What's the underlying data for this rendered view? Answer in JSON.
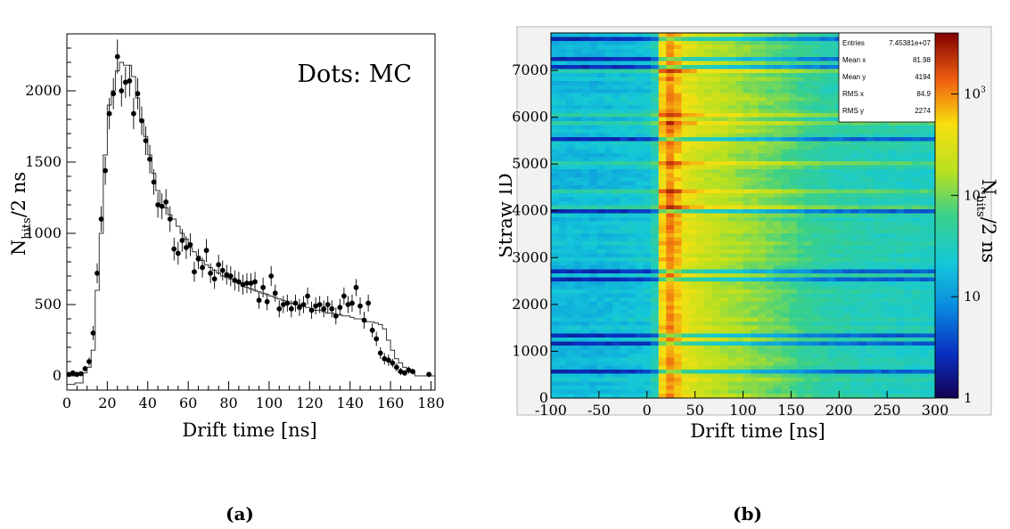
{
  "captions": {
    "a": "(a)",
    "b": "(b)"
  },
  "chart_data": [
    {
      "type": "scatter",
      "annotation": "Dots: MC",
      "xlabel": "Drift time [ns]",
      "ylabel_main": "N",
      "ylabel_sub": "hits",
      "ylabel_tail": "/2 ns",
      "xlim": [
        0,
        182
      ],
      "ylim": [
        -100,
        2400
      ],
      "xticks": [
        0,
        20,
        40,
        60,
        80,
        100,
        120,
        140,
        160,
        180
      ],
      "yticks": [
        0,
        500,
        1000,
        1500,
        2000
      ],
      "x_tick_labels": [
        "0",
        "20",
        "40",
        "60",
        "80",
        "100",
        "120",
        "140",
        "160",
        "180"
      ],
      "y_tick_labels": [
        "0",
        "500",
        "1000",
        "1500",
        "2000"
      ],
      "series": [
        {
          "style": "dots",
          "x": [
            1,
            3,
            5,
            7,
            9,
            11,
            13,
            15,
            17,
            19,
            21,
            23,
            25,
            27,
            29,
            31,
            33,
            35,
            37,
            39,
            41,
            43,
            45,
            47,
            49,
            51,
            53,
            55,
            57,
            59,
            61,
            63,
            65,
            67,
            69,
            71,
            73,
            75,
            77,
            79,
            81,
            83,
            85,
            87,
            89,
            91,
            93,
            95,
            97,
            99,
            101,
            103,
            105,
            107,
            109,
            111,
            113,
            115,
            117,
            119,
            121,
            123,
            125,
            127,
            129,
            131,
            133,
            135,
            137,
            139,
            141,
            143,
            145,
            147,
            149,
            151,
            153,
            155,
            157,
            159,
            161,
            163,
            165,
            167,
            169,
            171,
            179
          ],
          "y": [
            10,
            20,
            10,
            15,
            50,
            100,
            300,
            720,
            1100,
            1440,
            1840,
            1980,
            2240,
            2000,
            2060,
            2070,
            1840,
            1980,
            1790,
            1650,
            1520,
            1360,
            1200,
            1190,
            1220,
            1100,
            890,
            860,
            950,
            900,
            920,
            730,
            820,
            760,
            880,
            720,
            680,
            780,
            740,
            710,
            700,
            670,
            660,
            640,
            650,
            650,
            660,
            530,
            620,
            520,
            700,
            580,
            470,
            500,
            510,
            470,
            510,
            480,
            500,
            560,
            460,
            490,
            500,
            470,
            500,
            470,
            420,
            480,
            560,
            500,
            510,
            620,
            490,
            390,
            510,
            320,
            260,
            160,
            120,
            110,
            90,
            60,
            30,
            20,
            40,
            30,
            10
          ],
          "err": [
            15,
            15,
            15,
            15,
            20,
            30,
            50,
            70,
            90,
            100,
            110,
            110,
            120,
            110,
            110,
            110,
            110,
            110,
            100,
            100,
            100,
            90,
            90,
            90,
            90,
            90,
            80,
            80,
            80,
            80,
            80,
            70,
            70,
            70,
            80,
            70,
            70,
            70,
            70,
            70,
            70,
            70,
            70,
            70,
            70,
            70,
            70,
            60,
            70,
            60,
            70,
            60,
            60,
            60,
            60,
            60,
            60,
            60,
            60,
            60,
            60,
            60,
            60,
            60,
            60,
            60,
            60,
            60,
            60,
            60,
            60,
            60,
            60,
            60,
            60,
            50,
            50,
            40,
            40,
            40,
            30,
            30,
            25,
            20,
            25,
            20,
            15
          ]
        },
        {
          "style": "step",
          "x": [
            0,
            2,
            4,
            6,
            8,
            10,
            12,
            14,
            16,
            18,
            20,
            22,
            24,
            26,
            28,
            30,
            32,
            34,
            36,
            38,
            40,
            42,
            44,
            46,
            48,
            50,
            52,
            54,
            56,
            58,
            60,
            62,
            64,
            66,
            68,
            70,
            72,
            74,
            76,
            78,
            80,
            82,
            84,
            86,
            88,
            90,
            92,
            94,
            96,
            98,
            100,
            102,
            104,
            106,
            108,
            110,
            112,
            114,
            116,
            118,
            120,
            122,
            124,
            126,
            128,
            130,
            132,
            134,
            136,
            138,
            140,
            142,
            144,
            146,
            148,
            150,
            152,
            154,
            156,
            158,
            160,
            162,
            164,
            166,
            168,
            170,
            172,
            174,
            176,
            178,
            180
          ],
          "y": [
            -60,
            -60,
            -50,
            -50,
            20,
            60,
            180,
            600,
            1000,
            1550,
            1900,
            2000,
            2140,
            2200,
            2180,
            2180,
            2100,
            1950,
            1800,
            1680,
            1550,
            1420,
            1300,
            1200,
            1180,
            1130,
            1100,
            1050,
            1000,
            960,
            900,
            870,
            840,
            810,
            780,
            760,
            740,
            720,
            700,
            690,
            680,
            660,
            650,
            640,
            620,
            610,
            600,
            590,
            580,
            570,
            560,
            550,
            540,
            530,
            520,
            510,
            500,
            500,
            490,
            480,
            470,
            460,
            460,
            450,
            440,
            440,
            430,
            430,
            420,
            420,
            410,
            400,
            400,
            390,
            380,
            380,
            370,
            360,
            330,
            250,
            180,
            120,
            90,
            60,
            40,
            20,
            0,
            0,
            0,
            0,
            0
          ]
        }
      ]
    },
    {
      "type": "heatmap",
      "xlabel": "Drift time [ns]",
      "ylabel": "Straw ID",
      "zlabel_main": "N",
      "zlabel_sub": "hits",
      "zlabel_tail": "/2 ns",
      "xlim": [
        -100,
        300
      ],
      "ylim": [
        0,
        7800
      ],
      "zscale": "log",
      "zlim": [
        1,
        4000
      ],
      "xticks": [
        -100,
        -50,
        0,
        50,
        100,
        150,
        200,
        250,
        300
      ],
      "yticks": [
        0,
        1000,
        2000,
        3000,
        4000,
        5000,
        6000,
        7000
      ],
      "x_tick_labels": [
        "-100",
        "-50",
        "0",
        "50",
        "100",
        "150",
        "200",
        "250",
        "300"
      ],
      "y_tick_labels": [
        "0",
        "1000",
        "2000",
        "3000",
        "4000",
        "5000",
        "6000",
        "7000"
      ],
      "z_tick_labels": [
        "1",
        "10",
        "10",
        "10"
      ],
      "z_tick_exps": [
        "",
        "",
        "2",
        "3"
      ],
      "stats": [
        {
          "label": "Entries",
          "value": "7.45381e+07"
        },
        {
          "label": "Mean x",
          "value": "81.98"
        },
        {
          "label": "Mean y",
          "value": "4194"
        },
        {
          "label": "RMS x",
          "value": "84.9"
        },
        {
          "label": "RMS y",
          "value": "2274"
        }
      ],
      "time_profile": {
        "x": [
          -100,
          -50,
          0,
          10,
          15,
          25,
          40,
          60,
          80,
          100,
          120,
          140,
          160,
          180,
          200,
          250,
          300
        ],
        "level": [
          0.35,
          0.35,
          0.38,
          0.45,
          0.75,
          0.85,
          0.72,
          0.66,
          0.63,
          0.6,
          0.57,
          0.54,
          0.5,
          0.47,
          0.45,
          0.43,
          0.42
        ]
      }
    }
  ]
}
